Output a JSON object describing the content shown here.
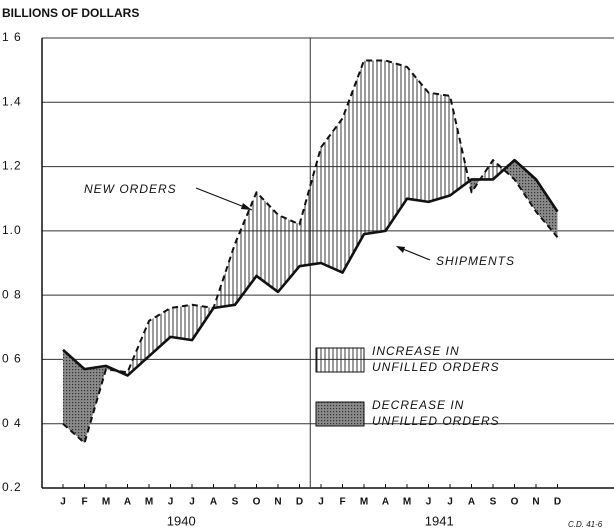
{
  "chart_data": {
    "type": "line",
    "y_axis_label": "BILLIONS OF DOLLARS",
    "categories": [
      "J",
      "F",
      "M",
      "A",
      "M",
      "J",
      "J",
      "A",
      "S",
      "O",
      "N",
      "D",
      "J",
      "F",
      "M",
      "A",
      "M",
      "J",
      "J",
      "A",
      "S",
      "O",
      "N",
      "D"
    ],
    "year_labels": [
      "1940",
      "1941"
    ],
    "series": [
      {
        "name": "NEW ORDERS",
        "color": "#111111",
        "dashed": true,
        "values": [
          0.4,
          0.34,
          0.57,
          0.56,
          0.72,
          0.76,
          0.77,
          0.76,
          0.96,
          1.12,
          1.05,
          1.02,
          1.26,
          1.35,
          1.53,
          1.53,
          1.51,
          1.43,
          1.42,
          1.12,
          1.22,
          1.16,
          1.06,
          0.98
        ]
      },
      {
        "name": "SHIPMENTS",
        "color": "#111111",
        "dashed": false,
        "values": [
          0.63,
          0.57,
          0.58,
          0.55,
          0.61,
          0.67,
          0.66,
          0.76,
          0.77,
          0.86,
          0.81,
          0.89,
          0.9,
          0.87,
          0.99,
          1.0,
          1.1,
          1.09,
          1.11,
          1.16,
          1.16,
          1.22,
          1.16,
          1.06
        ]
      }
    ],
    "legend": [
      {
        "lines": [
          "INCREASE IN",
          "UNFILLED ORDERS"
        ]
      },
      {
        "lines": [
          "DECREASE IN",
          "UNFILLED ORDERS"
        ]
      }
    ],
    "footer": "C.D. 41-6",
    "ylim": [
      0.2,
      1.6
    ],
    "yticks": [
      0.2,
      {
        "value": 0.4,
        "label": "0 4"
      },
      {
        "value": 0.6,
        "label": "0 6"
      },
      {
        "value": 0.8,
        "label": "0 8"
      },
      {
        "value": 1.0,
        "label": "1.0"
      },
      1.2,
      1.4,
      {
        "value": 1.6,
        "label": "1 6"
      }
    ],
    "grid": true
  }
}
